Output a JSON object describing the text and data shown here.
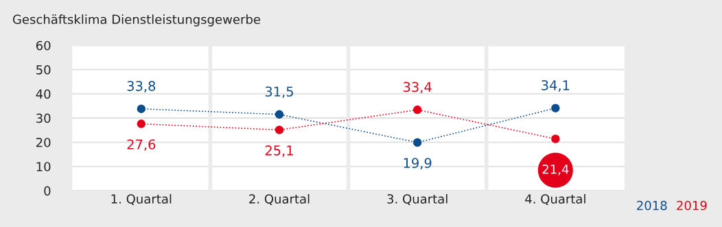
{
  "chart_data": {
    "type": "line",
    "title": "Geschäftsklima Dienstleistungsgewerbe",
    "categories": [
      "1. Quartal",
      "2. Quartal",
      "3. Quartal",
      "4. Quartal"
    ],
    "series": [
      {
        "name": "2018",
        "color": "#0d4d8c",
        "values": [
          33.8,
          31.5,
          19.9,
          34.1
        ],
        "value_labels": [
          "33,8",
          "31,5",
          "19,9",
          "34,1"
        ]
      },
      {
        "name": "2019",
        "color": "#e3001b",
        "values": [
          27.6,
          25.1,
          33.4,
          21.4
        ],
        "value_labels": [
          "27,6",
          "25,1",
          "33,4",
          "21,4"
        ]
      }
    ],
    "ylim": [
      0,
      60
    ],
    "yticks": [
      0,
      10,
      20,
      30,
      40,
      50,
      60
    ],
    "grid": true,
    "legend": "bottom right",
    "marker": "circle",
    "line_style": "dotted"
  }
}
